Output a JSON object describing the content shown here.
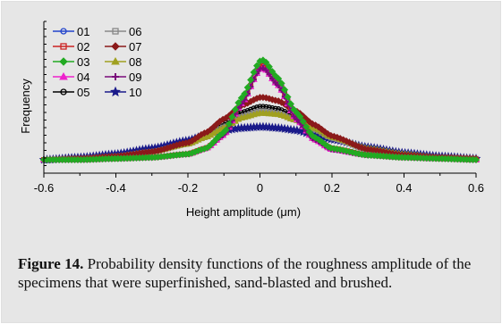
{
  "chart_data": {
    "type": "line",
    "title": "",
    "xlabel": "Height amplitude (μm)",
    "ylabel": "Frequency",
    "xlim": [
      -0.6,
      0.6
    ],
    "x_ticks": [
      "-0.6",
      "-0.4",
      "-0.2",
      "0",
      "0.2",
      "0.4",
      "0.6"
    ],
    "ylim": [
      0,
      1
    ],
    "grid": false,
    "legend_position": "top-left",
    "x": [
      -0.6,
      -0.5,
      -0.4,
      -0.3,
      -0.2,
      -0.15,
      -0.1,
      -0.05,
      0,
      0.01,
      0.05,
      0.1,
      0.15,
      0.2,
      0.3,
      0.4,
      0.5,
      0.6
    ],
    "series": [
      {
        "name": "01",
        "color": "#2244cc",
        "marker": "circle",
        "values": [
          0.0,
          0.0,
          0.01,
          0.02,
          0.05,
          0.1,
          0.22,
          0.5,
          0.84,
          0.85,
          0.7,
          0.4,
          0.2,
          0.1,
          0.04,
          0.02,
          0.01,
          0.0
        ]
      },
      {
        "name": "02",
        "color": "#cc2222",
        "marker": "square",
        "values": [
          0.0,
          0.0,
          0.01,
          0.02,
          0.05,
          0.1,
          0.22,
          0.5,
          0.82,
          0.83,
          0.68,
          0.38,
          0.18,
          0.1,
          0.04,
          0.02,
          0.01,
          0.0
        ]
      },
      {
        "name": "03",
        "color": "#22aa22",
        "marker": "diamond",
        "values": [
          0.0,
          0.0,
          0.01,
          0.02,
          0.05,
          0.1,
          0.24,
          0.55,
          0.87,
          0.88,
          0.72,
          0.42,
          0.2,
          0.1,
          0.04,
          0.02,
          0.01,
          0.0
        ]
      },
      {
        "name": "04",
        "color": "#ee22cc",
        "marker": "triangle",
        "values": [
          0.0,
          0.0,
          0.01,
          0.02,
          0.05,
          0.1,
          0.22,
          0.5,
          0.8,
          0.81,
          0.66,
          0.36,
          0.18,
          0.09,
          0.04,
          0.02,
          0.01,
          0.0
        ]
      },
      {
        "name": "05",
        "color": "#000000",
        "marker": "circle",
        "values": [
          0.0,
          0.01,
          0.03,
          0.07,
          0.15,
          0.22,
          0.32,
          0.42,
          0.47,
          0.47,
          0.45,
          0.38,
          0.28,
          0.2,
          0.09,
          0.04,
          0.02,
          0.01
        ]
      },
      {
        "name": "06",
        "color": "#888888",
        "marker": "square",
        "values": [
          0.0,
          0.01,
          0.03,
          0.07,
          0.14,
          0.2,
          0.29,
          0.38,
          0.43,
          0.43,
          0.41,
          0.35,
          0.27,
          0.19,
          0.09,
          0.04,
          0.02,
          0.01
        ]
      },
      {
        "name": "07",
        "color": "#8b1a1a",
        "marker": "diamond",
        "values": [
          0.0,
          0.01,
          0.03,
          0.07,
          0.15,
          0.24,
          0.36,
          0.48,
          0.55,
          0.55,
          0.52,
          0.43,
          0.31,
          0.21,
          0.09,
          0.04,
          0.02,
          0.01
        ]
      },
      {
        "name": "08",
        "color": "#a0a020",
        "marker": "triangle",
        "values": [
          0.0,
          0.01,
          0.03,
          0.07,
          0.14,
          0.2,
          0.28,
          0.37,
          0.41,
          0.41,
          0.4,
          0.35,
          0.28,
          0.2,
          0.1,
          0.05,
          0.02,
          0.01
        ]
      },
      {
        "name": "09",
        "color": "#7a0a7a",
        "marker": "cross",
        "values": [
          0.0,
          0.0,
          0.01,
          0.02,
          0.05,
          0.1,
          0.22,
          0.5,
          0.8,
          0.81,
          0.66,
          0.36,
          0.18,
          0.09,
          0.04,
          0.02,
          0.01,
          0.0
        ]
      },
      {
        "name": "10",
        "color": "#1a1a8a",
        "marker": "star",
        "values": [
          0.0,
          0.02,
          0.05,
          0.1,
          0.17,
          0.22,
          0.26,
          0.28,
          0.29,
          0.29,
          0.28,
          0.26,
          0.22,
          0.18,
          0.11,
          0.06,
          0.03,
          0.01
        ]
      }
    ]
  },
  "caption": {
    "label": "Figure 14.",
    "text": " Probability density functions of the roughness amplitude of the specimens that were superfinished, sand-blasted and brushed."
  }
}
